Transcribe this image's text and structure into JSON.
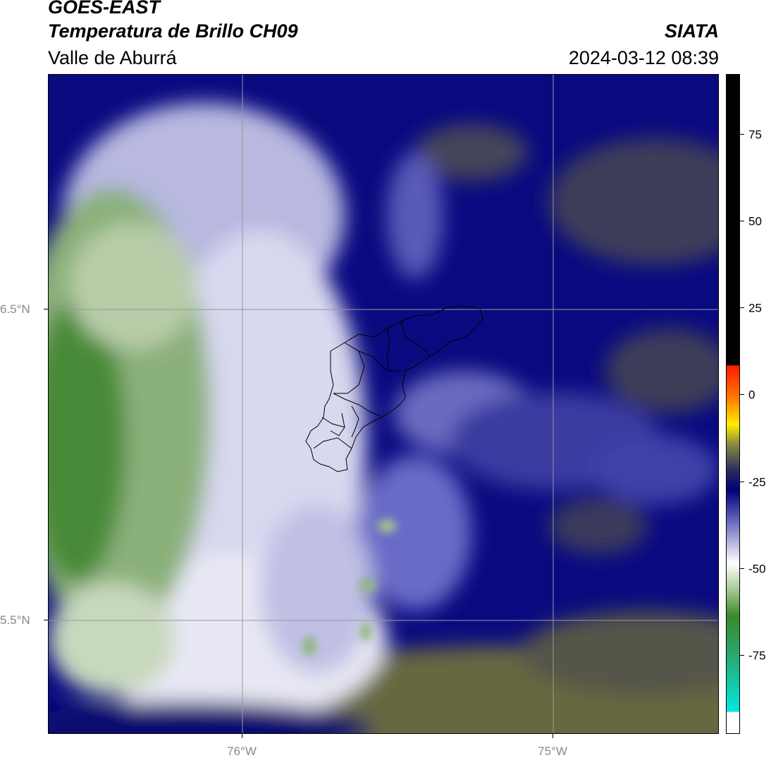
{
  "header": {
    "title_line1": "GOES-EAST",
    "title_line2": "Temperatura de Brillo CH09",
    "region": "Valle de Aburrá",
    "organization": "SIATA",
    "timestamp": "2024-03-12 08:39"
  },
  "map": {
    "type": "satellite-brightness-temperature",
    "lat_ticks": [
      {
        "value": 6.5,
        "label": "6.5°N"
      },
      {
        "value": 5.5,
        "label": "5.5°N"
      }
    ],
    "lon_ticks": [
      {
        "value": -76.0,
        "label": "76°W"
      },
      {
        "value": -75.0,
        "label": "75°W"
      }
    ],
    "grid": true,
    "overlay": "municipal-boundaries"
  },
  "colorbar": {
    "ticks": [
      {
        "value": 75,
        "label": "75"
      },
      {
        "value": 50,
        "label": "50"
      },
      {
        "value": 25,
        "label": "25"
      },
      {
        "value": 0,
        "label": "0"
      },
      {
        "value": -25,
        "label": "-25"
      },
      {
        "value": -50,
        "label": "-50"
      },
      {
        "value": -75,
        "label": "-75"
      }
    ],
    "colors": {
      "warm_top": "#000000",
      "red": "#ff2200",
      "orange": "#ff8800",
      "yellow": "#ffee00",
      "olive": "#6f6f3a",
      "navy": "#00007a",
      "lavender": "#a8a8d8",
      "white": "#ffffff",
      "green": "#3a8a2a",
      "teal": "#1ec8b8",
      "cyan": "#00e8e0"
    }
  }
}
